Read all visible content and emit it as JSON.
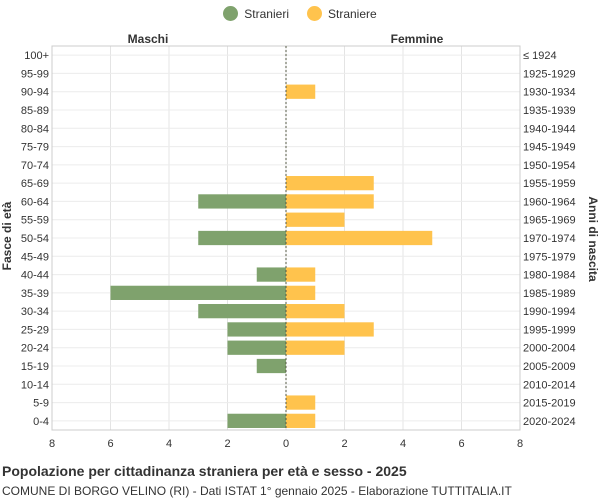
{
  "legend": {
    "series1": {
      "label": "Stranieri",
      "color": "#7fa26d"
    },
    "series2": {
      "label": "Straniere",
      "color": "#ffc34d"
    }
  },
  "chart_data": {
    "type": "bar",
    "orientation": "horizontal-pyramid",
    "title": "Popolazione per cittadinanza straniera per età e sesso - 2025",
    "subtitle": "COMUNE DI BORGO VELINO (RI) - Dati ISTAT 1° gennaio 2025 - Elaborazione TUTTITALIA.IT",
    "left_header": "Maschi",
    "right_header": "Femmine",
    "ylabel_left": "Fasce di età",
    "ylabel_right": "Anni di nascita",
    "xlim": [
      -8,
      8
    ],
    "xticks": [
      "8",
      "6",
      "4",
      "2",
      "0",
      "2",
      "4",
      "6",
      "8"
    ],
    "grid": true,
    "legend_position": "top",
    "categories": [
      "100+",
      "95-99",
      "90-94",
      "85-89",
      "80-84",
      "75-79",
      "70-74",
      "65-69",
      "60-64",
      "55-59",
      "50-54",
      "45-49",
      "40-44",
      "35-39",
      "30-34",
      "25-29",
      "20-24",
      "15-19",
      "10-14",
      "5-9",
      "0-4"
    ],
    "birth_years": [
      "≤ 1924",
      "1925-1929",
      "1930-1934",
      "1935-1939",
      "1940-1944",
      "1945-1949",
      "1950-1954",
      "1955-1959",
      "1960-1964",
      "1965-1969",
      "1970-1974",
      "1975-1979",
      "1980-1984",
      "1985-1989",
      "1990-1994",
      "1995-1999",
      "2000-2004",
      "2005-2009",
      "2010-2014",
      "2015-2019",
      "2020-2024"
    ],
    "series": [
      {
        "name": "Stranieri",
        "color": "#7fa26d",
        "values": [
          0,
          0,
          0,
          0,
          0,
          0,
          0,
          0,
          3,
          0,
          3,
          0,
          1,
          6,
          3,
          2,
          2,
          1,
          0,
          0,
          2
        ]
      },
      {
        "name": "Straniere",
        "color": "#ffc34d",
        "values": [
          0,
          0,
          1,
          0,
          0,
          0,
          0,
          3,
          3,
          2,
          5,
          0,
          1,
          1,
          2,
          3,
          2,
          0,
          0,
          1,
          1
        ]
      }
    ]
  }
}
